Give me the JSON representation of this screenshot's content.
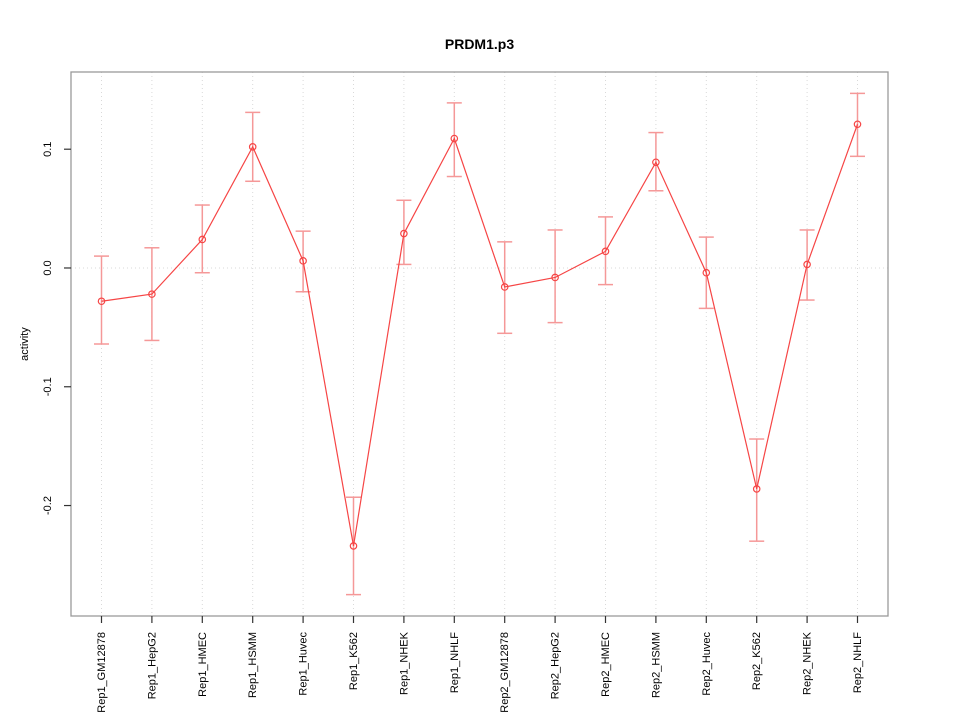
{
  "chart_data": {
    "type": "line",
    "title": "PRDM1.p3",
    "ylabel": "activity",
    "xlabel": "",
    "legend": "none",
    "marker": "open-circle",
    "error_bars": true,
    "categories": [
      "Rep1_GM12878",
      "Rep1_HepG2",
      "Rep1_HMEC",
      "Rep1_HSMM",
      "Rep1_Huvec",
      "Rep1_K562",
      "Rep1_NHEK",
      "Rep1_NHLF",
      "Rep2_GM12878",
      "Rep2_HepG2",
      "Rep2_HMEC",
      "Rep2_HSMM",
      "Rep2_Huvec",
      "Rep2_K562",
      "Rep2_NHEK",
      "Rep2_NHLF"
    ],
    "series": [
      {
        "name": "activity",
        "values": [
          -0.028,
          -0.022,
          0.024,
          0.102,
          0.006,
          -0.234,
          0.029,
          0.109,
          -0.016,
          -0.008,
          0.014,
          0.089,
          -0.004,
          -0.186,
          0.003,
          0.121
        ],
        "err_low": [
          -0.064,
          -0.061,
          -0.004,
          0.073,
          -0.02,
          -0.275,
          0.003,
          0.077,
          -0.055,
          -0.046,
          -0.014,
          0.065,
          -0.034,
          -0.23,
          -0.027,
          0.094
        ],
        "err_high": [
          0.01,
          0.017,
          0.053,
          0.131,
          0.031,
          -0.193,
          0.057,
          0.139,
          0.022,
          0.032,
          0.043,
          0.114,
          0.026,
          -0.144,
          0.032,
          0.147
        ]
      }
    ],
    "ylim": [
      -0.293,
      0.165
    ],
    "yticks": [
      {
        "value": 0.1,
        "label": "0.1"
      },
      {
        "value": 0.0,
        "label": "0.0"
      },
      {
        "value": -0.1,
        "label": "-0.1"
      },
      {
        "value": -0.2,
        "label": "-0.2"
      }
    ],
    "grid": {
      "vertical": "dotted line per category",
      "horizontal": "dotted zero line only"
    },
    "colors": {
      "line": "#f64545",
      "marker": "#f64545",
      "error_bar": "#f59898",
      "grid": "#d9d9d9",
      "box": "#9a9a9a",
      "tick": "#333333",
      "text": "#000000",
      "background": "#ffffff"
    }
  }
}
